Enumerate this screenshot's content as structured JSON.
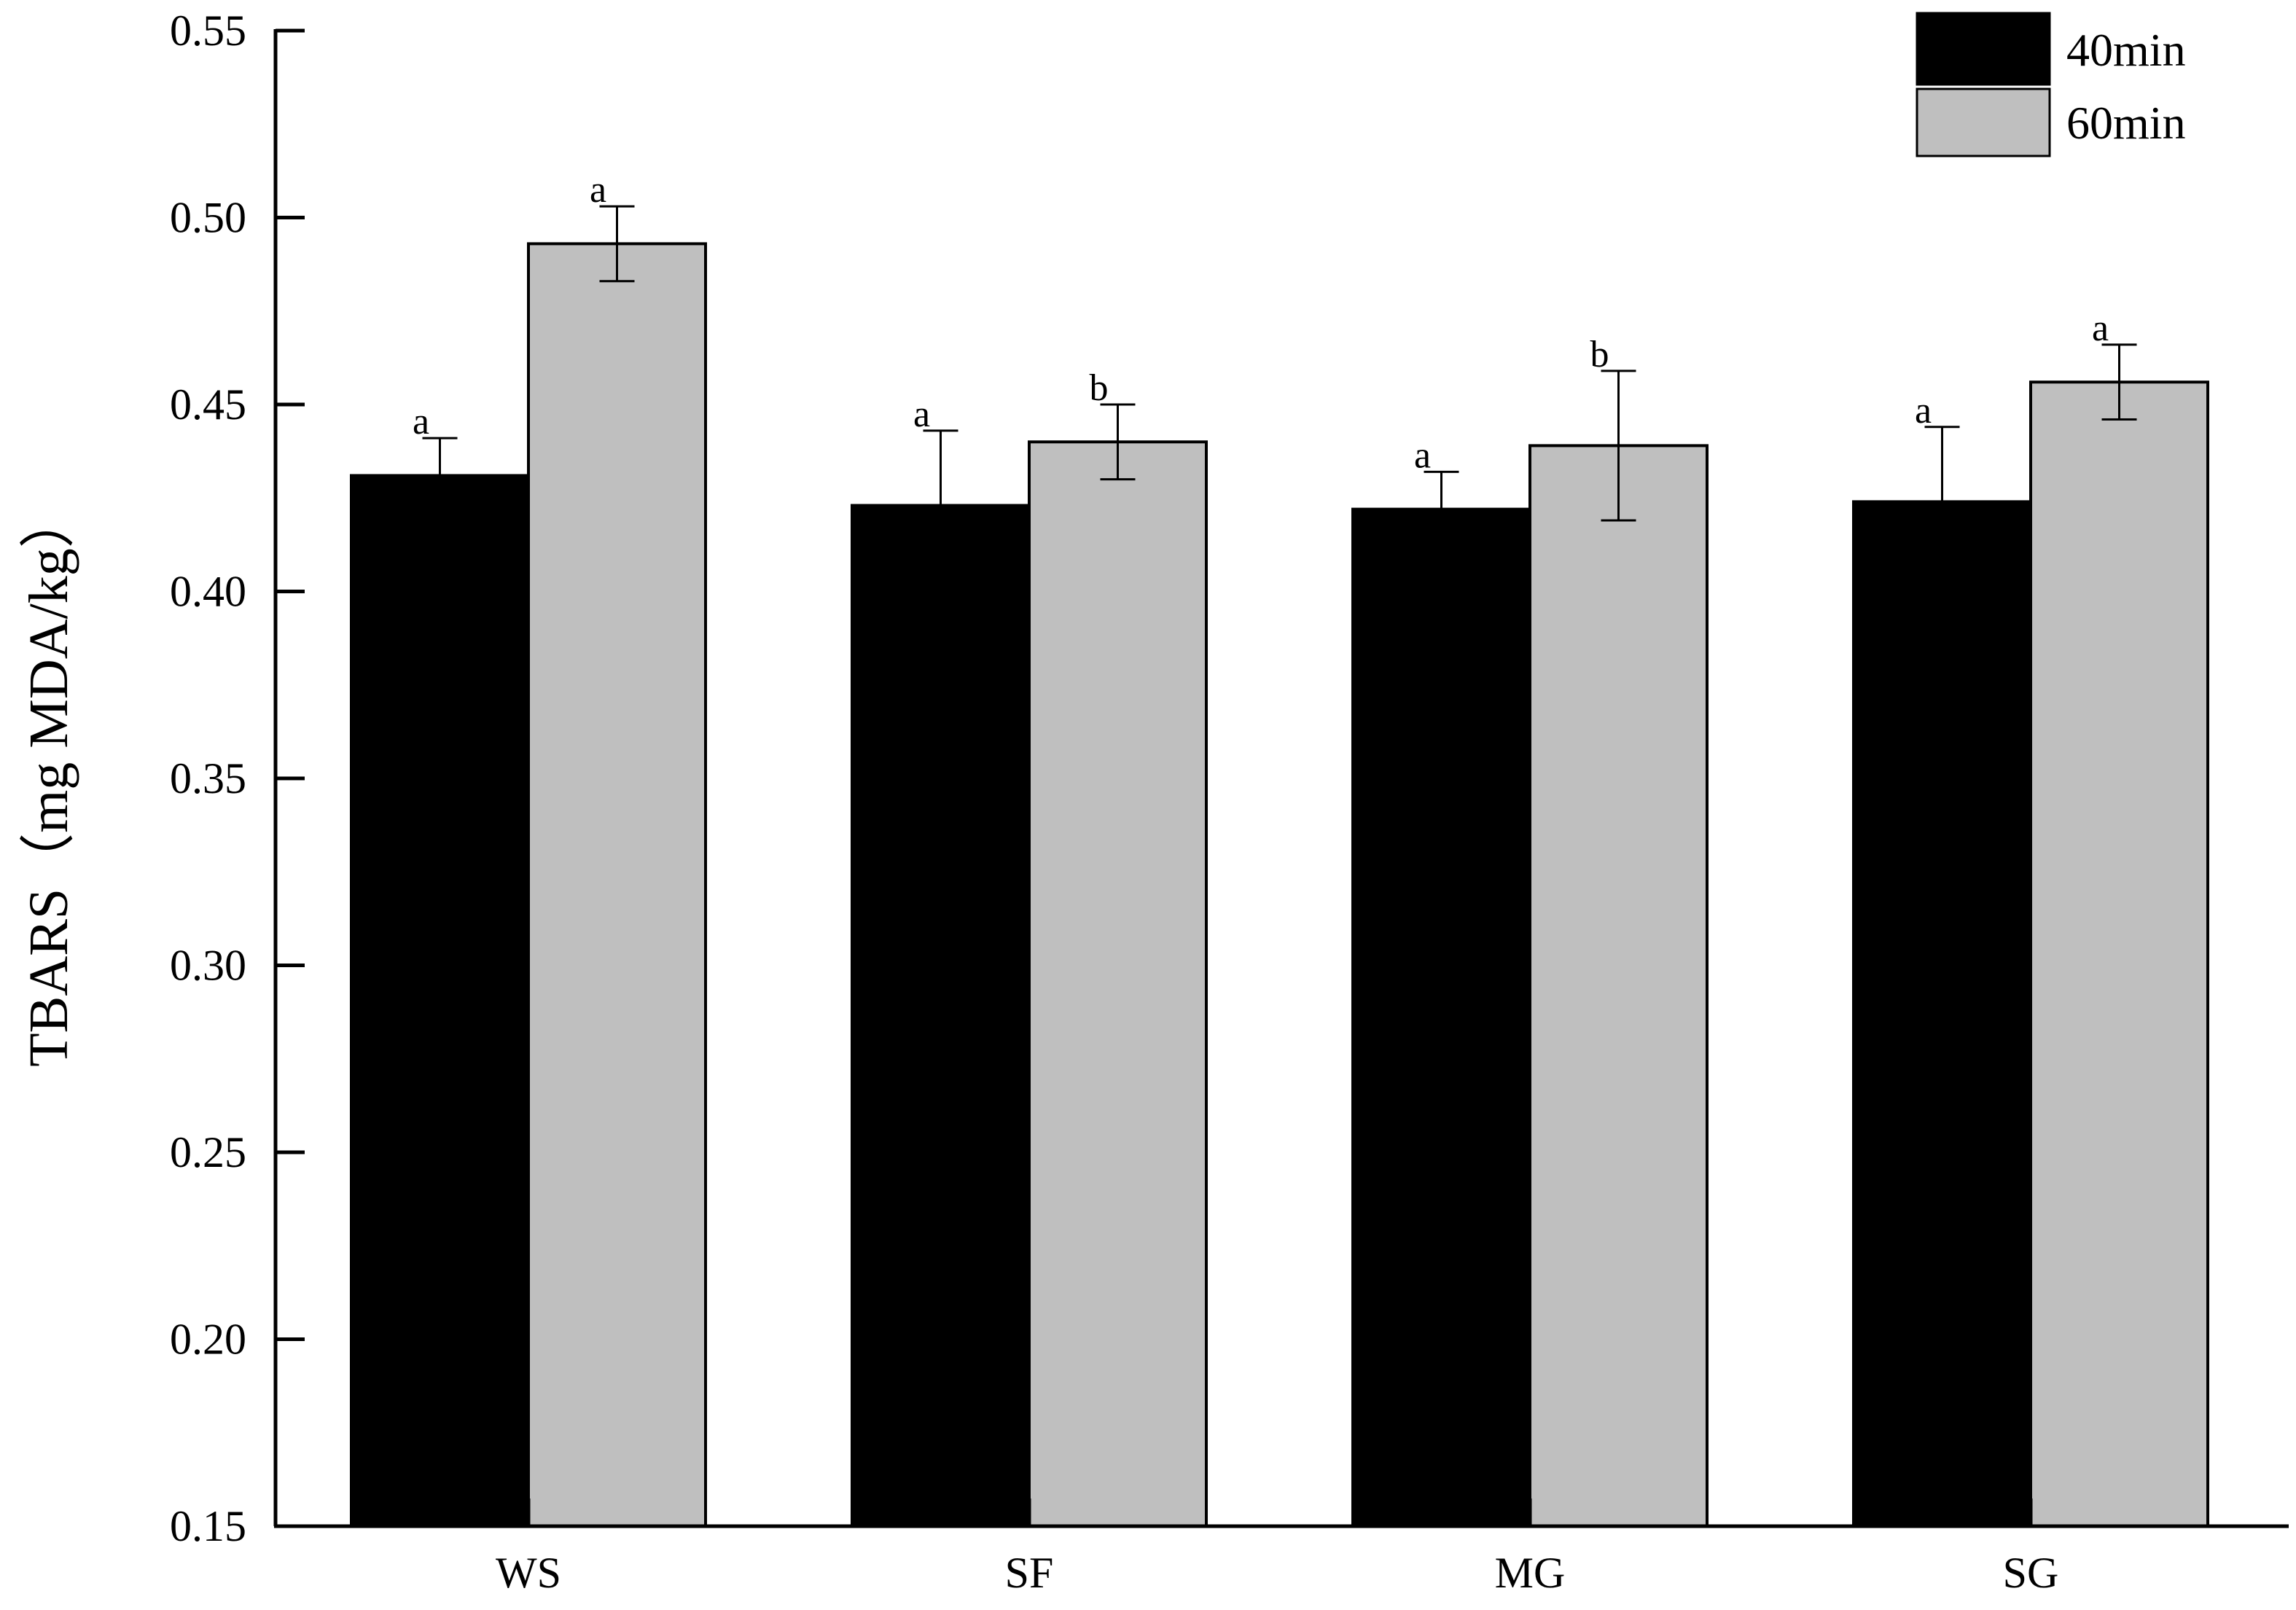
{
  "chart_data": {
    "type": "bar",
    "title": "",
    "xlabel": "",
    "ylabel": "TBARS（mg MDA/kg）",
    "ylim": [
      0.15,
      0.55
    ],
    "yticks": [
      "0.15",
      "0.20",
      "0.25",
      "0.30",
      "0.35",
      "0.40",
      "0.45",
      "0.50",
      "0.55"
    ],
    "categories": [
      "WS",
      "SF",
      "MG",
      "SG"
    ],
    "series": [
      {
        "name": "40min",
        "color": "#000000",
        "values": [
          0.431,
          0.423,
          0.422,
          0.424
        ],
        "errors": [
          0.01,
          0.02,
          0.01,
          0.02
        ],
        "labels": [
          "a",
          "a",
          "a",
          "a"
        ]
      },
      {
        "name": "60min",
        "color": "#bfbfbf",
        "values": [
          0.493,
          0.44,
          0.439,
          0.456
        ],
        "errors": [
          0.01,
          0.01,
          0.02,
          0.01
        ],
        "labels": [
          "a",
          "b",
          "b",
          "a"
        ]
      }
    ],
    "grid": false,
    "legend_position": "top-right"
  }
}
